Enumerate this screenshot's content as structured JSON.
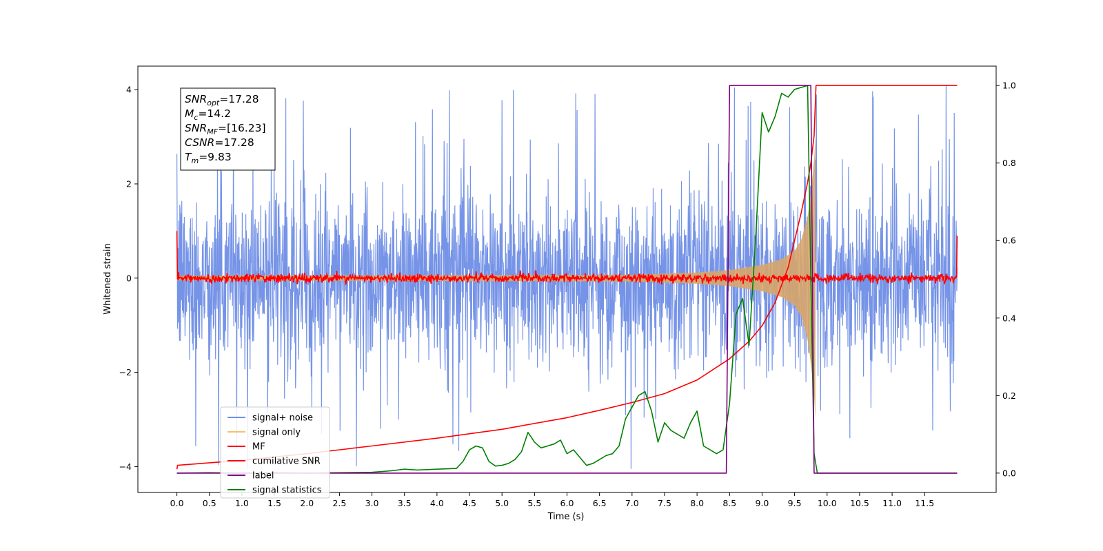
{
  "chart_data": {
    "type": "line",
    "title": "",
    "xlabel": "Time (s)",
    "ylabel": "Whitened strain",
    "xlim": [
      -0.6,
      12.6
    ],
    "ylim": [
      -4.55,
      4.5
    ],
    "y2lim": [
      -0.05,
      1.05
    ],
    "grid": false,
    "legend_placement": "lower-left",
    "x_ticks": [
      "0.0",
      "0.5",
      "1.0",
      "1.5",
      "2.0",
      "2.5",
      "3.0",
      "3.5",
      "4.0",
      "4.5",
      "5.0",
      "5.5",
      "6.0",
      "6.5",
      "7.0",
      "7.5",
      "8.0",
      "8.5",
      "9.0",
      "9.5",
      "10.0",
      "10.5",
      "11.0",
      "11.5"
    ],
    "y_ticks": [
      "−4",
      "−2",
      "0",
      "2",
      "4"
    ],
    "y2_ticks": [
      "0.0",
      "0.2",
      "0.4",
      "0.6",
      "0.8",
      "1.0"
    ],
    "annotation": {
      "lines": [
        {
          "base": "SNR",
          "sub": "opt",
          "rest": "=17.28"
        },
        {
          "base": "M",
          "sub": "c",
          "rest": "=14.2"
        },
        {
          "base": "SNR",
          "sub": "MF",
          "rest": "=[16.23]"
        },
        {
          "base": "CSNR",
          "sub": "",
          "rest": "=17.28"
        },
        {
          "base": "T",
          "sub": "m",
          "rest": "=9.83"
        }
      ]
    },
    "series": [
      {
        "name": "signal+ noise",
        "color": "#6f8ee6",
        "axis": "left",
        "description_values": "noise band between about -2.7 and 2.7 with spikes to about ±4 across 0.0 to 12.0"
      },
      {
        "name": "signal only",
        "color": "#f5c16c",
        "axis": "left",
        "envelope_x": [
          0.0,
          7.0,
          8.0,
          8.5,
          9.0,
          9.3,
          9.5,
          9.6,
          9.7,
          9.75,
          9.8,
          9.82
        ],
        "envelope_y": [
          0.05,
          0.07,
          0.12,
          0.17,
          0.28,
          0.4,
          0.58,
          0.8,
          1.3,
          1.8,
          2.5,
          3.0
        ]
      },
      {
        "name": "MF",
        "color": "#ff0000",
        "axis": "left",
        "description_values": "near zero with jitter of about ±0.12, spikes to 1.0 and 0.9 at both ends"
      },
      {
        "name": "cumilative SNR",
        "color": "#ff0000",
        "axis": "right",
        "x": [
          0.0,
          0.01,
          1.0,
          2.0,
          3.0,
          4.0,
          5.0,
          6.0,
          6.5,
          7.0,
          7.5,
          8.0,
          8.5,
          8.8,
          9.0,
          9.2,
          9.4,
          9.5,
          9.6,
          9.7,
          9.75,
          9.8,
          9.83,
          12.0
        ],
        "y": [
          0.01,
          0.02,
          0.033,
          0.05,
          0.07,
          0.09,
          0.113,
          0.143,
          0.162,
          0.182,
          0.205,
          0.24,
          0.295,
          0.34,
          0.38,
          0.44,
          0.53,
          0.6,
          0.67,
          0.75,
          0.8,
          0.87,
          1.0,
          1.0
        ]
      },
      {
        "name": "label",
        "color": "#800080",
        "axis": "right",
        "x": [
          0.0,
          8.45,
          8.5,
          9.75,
          9.8,
          12.0
        ],
        "y": [
          0.0,
          0.0,
          1.0,
          1.0,
          0.0,
          0.0
        ]
      },
      {
        "name": "signal statistics",
        "color": "#008000",
        "axis": "right",
        "x": [
          0.0,
          0.5,
          1.0,
          1.5,
          2.0,
          2.5,
          3.0,
          3.3,
          3.5,
          3.7,
          4.0,
          4.3,
          4.4,
          4.5,
          4.6,
          4.7,
          4.8,
          4.9,
          5.0,
          5.1,
          5.2,
          5.3,
          5.4,
          5.5,
          5.6,
          5.7,
          5.8,
          5.9,
          6.0,
          6.1,
          6.2,
          6.3,
          6.4,
          6.5,
          6.6,
          6.7,
          6.8,
          6.9,
          7.0,
          7.1,
          7.2,
          7.3,
          7.4,
          7.5,
          7.6,
          7.7,
          7.8,
          7.9,
          8.0,
          8.1,
          8.2,
          8.3,
          8.4,
          8.5,
          8.6,
          8.7,
          8.8,
          8.9,
          9.0,
          9.1,
          9.2,
          9.3,
          9.4,
          9.5,
          9.6,
          9.7,
          9.75,
          9.8,
          9.85,
          12.0
        ],
        "y": [
          0.0,
          0.001,
          0.0,
          0.001,
          0.0,
          0.001,
          0.002,
          0.006,
          0.01,
          0.008,
          0.01,
          0.012,
          0.03,
          0.06,
          0.07,
          0.065,
          0.03,
          0.018,
          0.02,
          0.025,
          0.035,
          0.055,
          0.105,
          0.08,
          0.065,
          0.07,
          0.075,
          0.085,
          0.05,
          0.06,
          0.04,
          0.02,
          0.025,
          0.035,
          0.045,
          0.05,
          0.07,
          0.14,
          0.17,
          0.2,
          0.21,
          0.16,
          0.08,
          0.13,
          0.11,
          0.1,
          0.09,
          0.13,
          0.16,
          0.07,
          0.06,
          0.05,
          0.06,
          0.18,
          0.41,
          0.45,
          0.33,
          0.6,
          0.93,
          0.88,
          0.92,
          0.98,
          0.97,
          0.99,
          0.995,
          1.0,
          0.5,
          0.05,
          0.0,
          0.0
        ]
      }
    ]
  }
}
